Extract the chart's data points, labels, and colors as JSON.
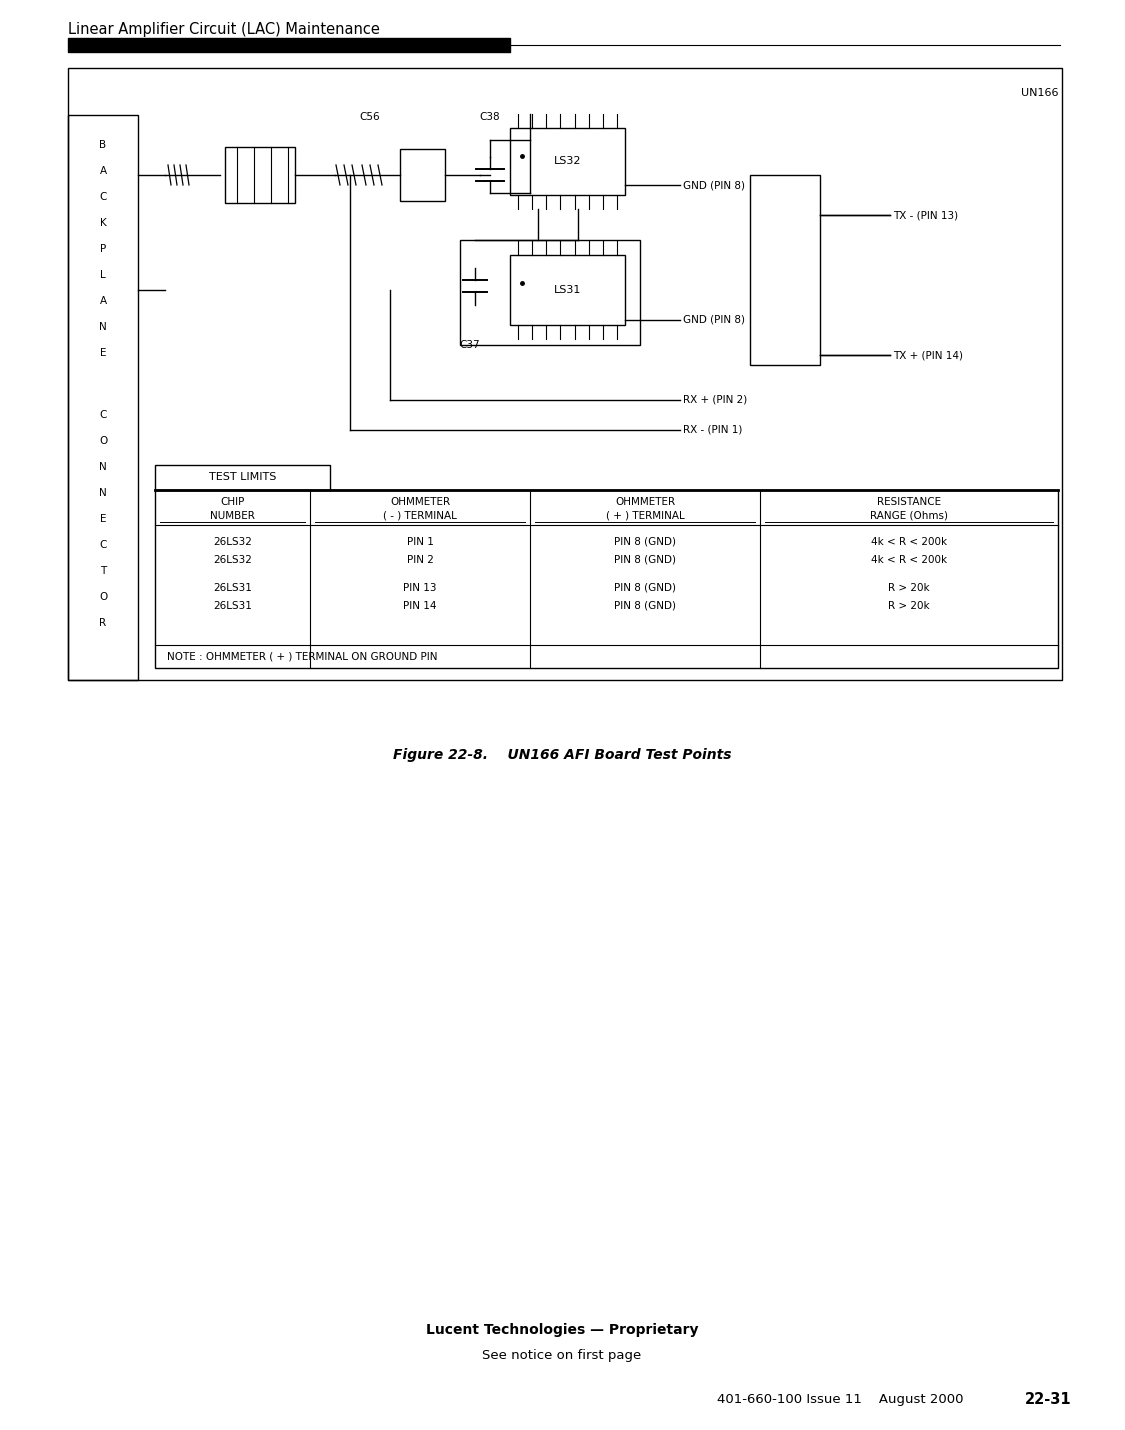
{
  "title_header": "Linear Amplifier Circuit (LAC) Maintenance",
  "figure_caption": "Figure 22-8.    UN166 AFI Board Test Points",
  "footer_line1": "Lucent Technologies — Proprietary",
  "footer_line2": "See notice on first page",
  "footer_line3": "401-660-100 Issue 11    August 2000",
  "footer_page": "22-31",
  "un166_label": "UN166",
  "c56_label": "C56",
  "c38_label": "C38",
  "c37_label": "C37",
  "ls32_label": "LS32",
  "ls31_label": "LS31",
  "gnd_pin8_1": "GND (PIN 8)",
  "tx_minus": "TX - (PIN 13)",
  "gnd_pin8_2": "GND (PIN 8)",
  "tx_plus": "TX + (PIN 14)",
  "rx_plus": "RX + (PIN 2)",
  "rx_minus": "RX - (PIN 1)",
  "table_title": "TEST LIMITS",
  "col_headers_line1": [
    "CHIP",
    "OHMMETER",
    "OHMMETER",
    "RESISTANCE"
  ],
  "col_headers_line2": [
    "NUMBER",
    "( - ) TERMINAL",
    "( + ) TERMINAL",
    "RANGE (Ohms)"
  ],
  "table_rows": [
    [
      "26LS32",
      "PIN 1",
      "PIN 8 (GND)",
      "4k < R < 200k"
    ],
    [
      "26LS32",
      "PIN 2",
      "PIN 8 (GND)",
      "4k < R < 200k"
    ],
    [
      "26LS31",
      "PIN 13",
      "PIN 8 (GND)",
      "R > 20k"
    ],
    [
      "26LS31",
      "PIN 14",
      "PIN 8 (GND)",
      "R > 20k"
    ]
  ],
  "note_text": "NOTE : OHMMETER ( + ) TERMINAL ON GROUND PIN",
  "backplane_chars": [
    "B",
    "A",
    "C",
    "K",
    "P",
    "L",
    "A",
    "N",
    "E",
    "",
    "C",
    "O",
    "N",
    "N",
    "E",
    "C",
    "T",
    "O",
    "R"
  ],
  "bg_color": "#ffffff",
  "line_color": "#000000",
  "text_color": "#000000"
}
